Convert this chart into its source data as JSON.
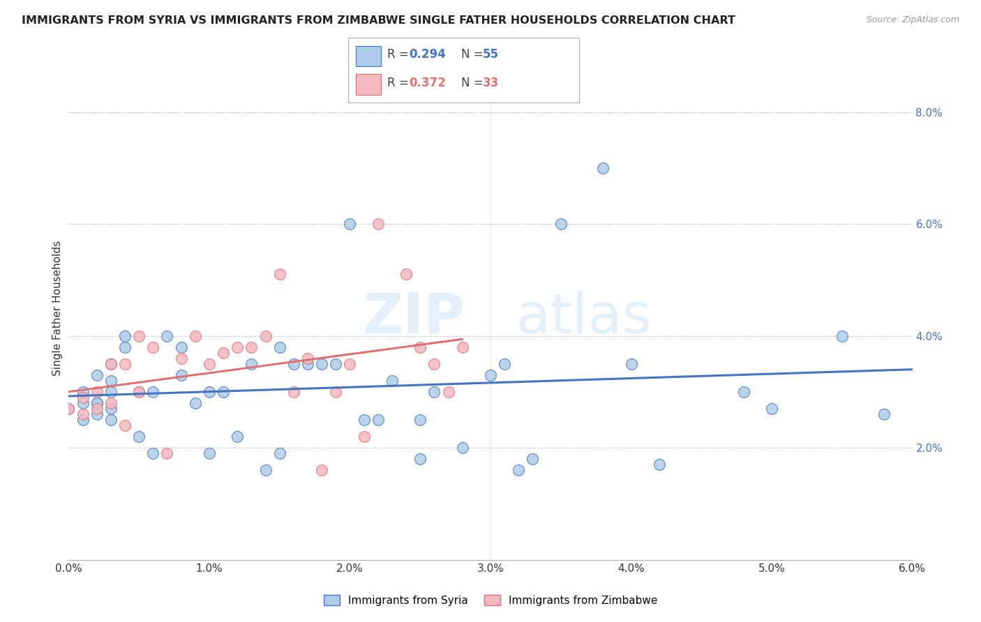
{
  "title": "IMMIGRANTS FROM SYRIA VS IMMIGRANTS FROM ZIMBABWE SINGLE FATHER HOUSEHOLDS CORRELATION CHART",
  "source": "Source: ZipAtlas.com",
  "ylabel": "Single Father Households",
  "watermark_zip": "ZIP",
  "watermark_atlas": "atlas",
  "color_syria": "#aecde8",
  "color_zimbabwe": "#f4b8c1",
  "color_line_syria": "#4472c4",
  "color_line_zimbabwe": "#e07070",
  "r_syria": "0.294",
  "n_syria": "55",
  "r_zimbabwe": "0.372",
  "n_zimbabwe": "33",
  "syria_x": [
    0.0,
    0.001,
    0.001,
    0.001,
    0.002,
    0.002,
    0.002,
    0.002,
    0.003,
    0.003,
    0.003,
    0.003,
    0.003,
    0.004,
    0.004,
    0.005,
    0.005,
    0.006,
    0.006,
    0.007,
    0.008,
    0.008,
    0.009,
    0.01,
    0.01,
    0.011,
    0.012,
    0.013,
    0.014,
    0.015,
    0.015,
    0.016,
    0.017,
    0.018,
    0.019,
    0.02,
    0.021,
    0.022,
    0.023,
    0.025,
    0.025,
    0.026,
    0.028,
    0.03,
    0.031,
    0.032,
    0.033,
    0.035,
    0.038,
    0.04,
    0.042,
    0.048,
    0.05,
    0.055,
    0.058
  ],
  "syria_y": [
    0.027,
    0.03,
    0.028,
    0.025,
    0.028,
    0.033,
    0.026,
    0.028,
    0.032,
    0.035,
    0.027,
    0.03,
    0.025,
    0.04,
    0.038,
    0.022,
    0.03,
    0.019,
    0.03,
    0.04,
    0.033,
    0.038,
    0.028,
    0.03,
    0.019,
    0.03,
    0.022,
    0.035,
    0.016,
    0.019,
    0.038,
    0.035,
    0.035,
    0.035,
    0.035,
    0.06,
    0.025,
    0.025,
    0.032,
    0.018,
    0.025,
    0.03,
    0.02,
    0.033,
    0.035,
    0.016,
    0.018,
    0.06,
    0.07,
    0.035,
    0.017,
    0.03,
    0.027,
    0.04,
    0.026
  ],
  "zimbabwe_x": [
    0.0,
    0.001,
    0.001,
    0.002,
    0.002,
    0.003,
    0.003,
    0.004,
    0.004,
    0.005,
    0.005,
    0.006,
    0.007,
    0.008,
    0.009,
    0.01,
    0.011,
    0.012,
    0.013,
    0.014,
    0.015,
    0.016,
    0.017,
    0.018,
    0.019,
    0.02,
    0.021,
    0.022,
    0.024,
    0.025,
    0.026,
    0.027,
    0.028
  ],
  "zimbabwe_y": [
    0.027,
    0.029,
    0.026,
    0.03,
    0.027,
    0.028,
    0.035,
    0.024,
    0.035,
    0.03,
    0.04,
    0.038,
    0.019,
    0.036,
    0.04,
    0.035,
    0.037,
    0.038,
    0.038,
    0.04,
    0.051,
    0.03,
    0.036,
    0.016,
    0.03,
    0.035,
    0.022,
    0.06,
    0.051,
    0.038,
    0.035,
    0.03,
    0.038
  ],
  "xlim": [
    0.0,
    0.06
  ],
  "ylim": [
    0.0,
    0.09
  ],
  "yticks": [
    0.02,
    0.04,
    0.06,
    0.08
  ],
  "ytick_labels": [
    "2.0%",
    "4.0%",
    "6.0%",
    "8.0%"
  ],
  "xticks": [
    0.0,
    0.01,
    0.02,
    0.03,
    0.04,
    0.05,
    0.06
  ],
  "xtick_labels": [
    "0.0%",
    "1.0%",
    "2.0%",
    "3.0%",
    "4.0%",
    "5.0%",
    "6.0%"
  ]
}
